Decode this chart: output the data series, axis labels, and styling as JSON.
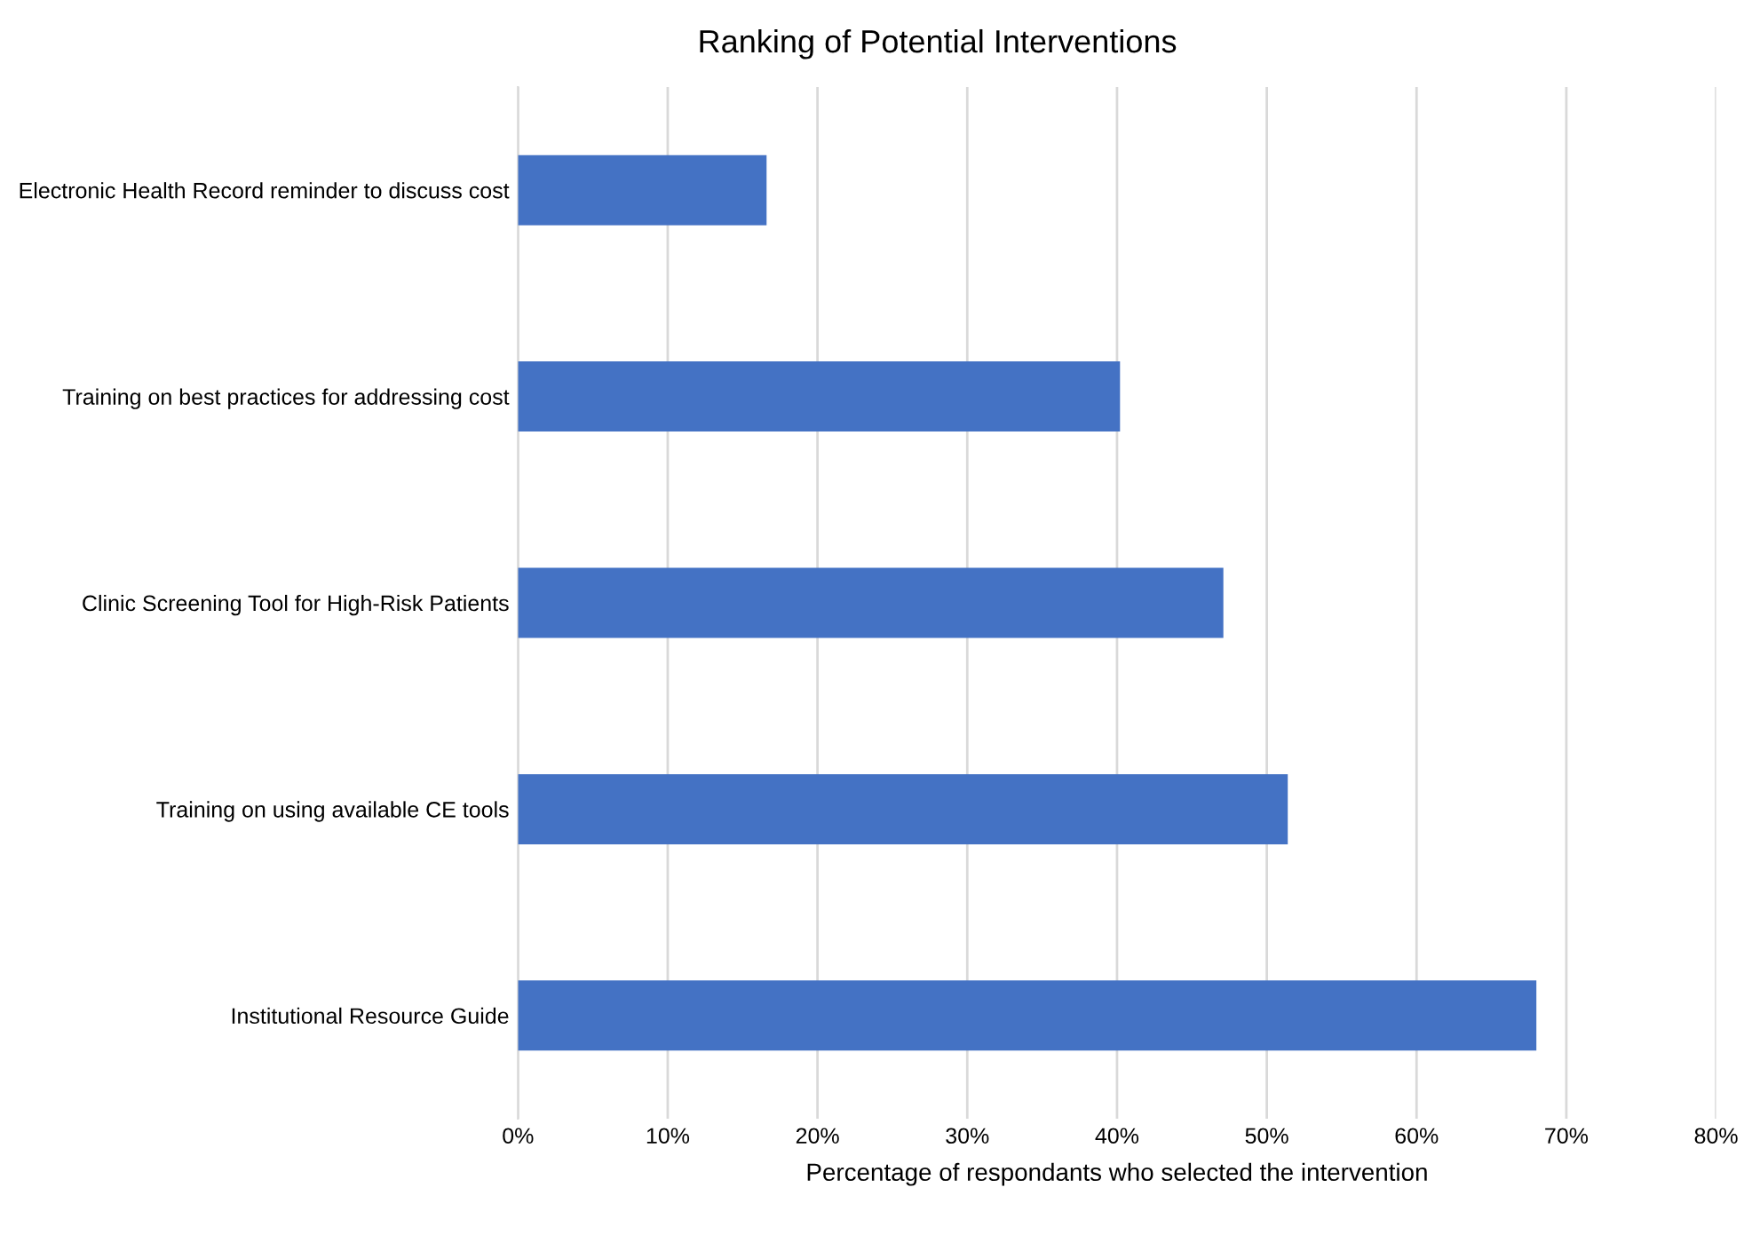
{
  "chart_data": {
    "type": "bar",
    "orientation": "horizontal",
    "title": "Ranking of Potential Interventions",
    "xlabel": "Percentage of respondants who selected the intervention",
    "categories": [
      "Electronic Health Record reminder to discuss cost",
      "Training on best practices for addressing cost",
      "Clinic Screening Tool for High-Risk Patients",
      "Training on using available CE tools",
      "Institutional Resource Guide"
    ],
    "values": [
      16.6,
      40.2,
      47.1,
      51.4,
      68.0
    ],
    "color": "#4472c4",
    "xlim": [
      0,
      80
    ],
    "xticks": [
      {
        "value": 0,
        "label": "0%"
      },
      {
        "value": 10,
        "label": "10%"
      },
      {
        "value": 20,
        "label": "20%"
      },
      {
        "value": 30,
        "label": "30%"
      },
      {
        "value": 40,
        "label": "40%"
      },
      {
        "value": 50,
        "label": "50%"
      },
      {
        "value": 60,
        "label": "60%"
      },
      {
        "value": 70,
        "label": "70%"
      },
      {
        "value": 80,
        "label": "80%"
      }
    ],
    "grid": "x"
  }
}
